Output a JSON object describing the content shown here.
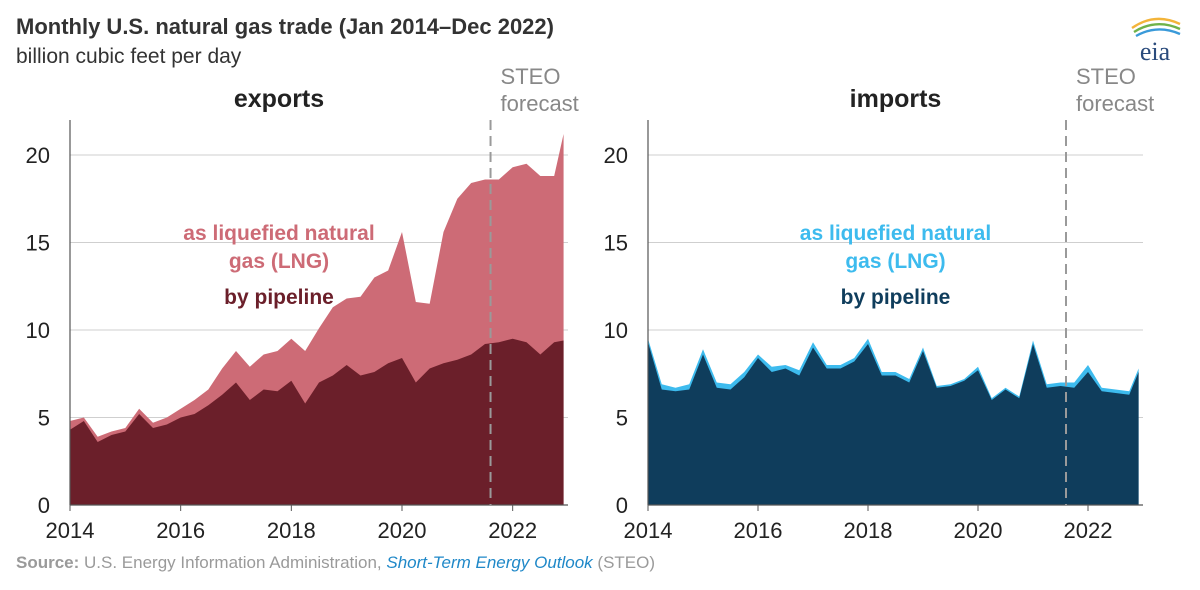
{
  "title": "Monthly U.S. natural gas trade (Jan 2014–Dec 2022)",
  "subtitle": "billion cubic feet per day",
  "source": {
    "label": "Source:",
    "text": " U.S. Energy Information Administration, ",
    "link": "Short-Term Energy Outlook",
    "suffix": " (STEO)"
  },
  "logo": {
    "text": "eia",
    "icon": "eia-logo"
  },
  "colors": {
    "exports_pipeline": "#6b1f2a",
    "exports_lng": "#cd6b76",
    "imports_pipeline": "#0f3d5c",
    "imports_lng": "#3dbbee",
    "grid": "#cfcfcf",
    "forecast_line": "#9a9a9a"
  },
  "chart_data": [
    {
      "type": "area",
      "stacked": true,
      "title": "exports",
      "xlim": [
        2014,
        2023
      ],
      "ylim": [
        0,
        22
      ],
      "x_ticks": [
        2014,
        2016,
        2018,
        2020,
        2022
      ],
      "y_ticks": [
        0,
        5,
        10,
        15,
        20
      ],
      "grid": true,
      "forecast_start": 2021.6,
      "forecast_label": [
        "STEO",
        "forecast"
      ],
      "series_labels": [
        {
          "lines": [
            "as liquefied natural",
            "gas (LNG)"
          ],
          "series": "LNG"
        },
        {
          "lines": [
            "by pipeline"
          ],
          "series": "pipeline"
        }
      ],
      "x": [
        2014.0,
        2014.25,
        2014.5,
        2014.75,
        2015.0,
        2015.25,
        2015.5,
        2015.75,
        2016.0,
        2016.25,
        2016.5,
        2016.75,
        2017.0,
        2017.25,
        2017.5,
        2017.75,
        2018.0,
        2018.25,
        2018.5,
        2018.75,
        2019.0,
        2019.25,
        2019.5,
        2019.75,
        2020.0,
        2020.25,
        2020.5,
        2020.75,
        2021.0,
        2021.25,
        2021.5,
        2021.75,
        2022.0,
        2022.25,
        2022.5,
        2022.75,
        2022.92
      ],
      "series": [
        {
          "name": "pipeline",
          "values": [
            4.3,
            4.8,
            3.6,
            4.0,
            4.2,
            5.2,
            4.4,
            4.6,
            5.0,
            5.2,
            5.7,
            6.3,
            7.0,
            6.0,
            6.6,
            6.5,
            7.1,
            5.8,
            7.0,
            7.4,
            8.0,
            7.4,
            7.6,
            8.1,
            8.4,
            7.0,
            7.8,
            8.1,
            8.3,
            8.6,
            9.2,
            9.3,
            9.5,
            9.3,
            8.6,
            9.3,
            9.4
          ]
        },
        {
          "name": "LNG",
          "values": [
            0.5,
            0.2,
            0.3,
            0.2,
            0.2,
            0.3,
            0.3,
            0.4,
            0.5,
            0.8,
            0.9,
            1.5,
            1.8,
            1.9,
            2.0,
            2.3,
            2.4,
            3.0,
            3.1,
            3.9,
            3.8,
            4.5,
            5.4,
            5.3,
            7.2,
            4.6,
            3.7,
            7.5,
            9.2,
            9.8,
            9.4,
            9.3,
            9.8,
            10.2,
            10.2,
            9.5,
            11.8
          ]
        }
      ]
    },
    {
      "type": "area",
      "stacked": true,
      "title": "imports",
      "xlim": [
        2014,
        2023
      ],
      "ylim": [
        0,
        22
      ],
      "x_ticks": [
        2014,
        2016,
        2018,
        2020,
        2022
      ],
      "y_ticks": [
        0,
        5,
        10,
        15,
        20
      ],
      "grid": true,
      "forecast_start": 2021.6,
      "forecast_label": [
        "STEO",
        "forecast"
      ],
      "series_labels": [
        {
          "lines": [
            "as liquefied natural",
            "gas (LNG)"
          ],
          "series": "LNG"
        },
        {
          "lines": [
            "by pipeline"
          ],
          "series": "pipeline"
        }
      ],
      "x": [
        2014.0,
        2014.25,
        2014.5,
        2014.75,
        2015.0,
        2015.25,
        2015.5,
        2015.75,
        2016.0,
        2016.25,
        2016.5,
        2016.75,
        2017.0,
        2017.25,
        2017.5,
        2017.75,
        2018.0,
        2018.25,
        2018.5,
        2018.75,
        2019.0,
        2019.25,
        2019.5,
        2019.75,
        2020.0,
        2020.25,
        2020.5,
        2020.75,
        2021.0,
        2021.25,
        2021.5,
        2021.75,
        2022.0,
        2022.25,
        2022.5,
        2022.75,
        2022.92
      ],
      "series": [
        {
          "name": "pipeline",
          "values": [
            9.3,
            6.6,
            6.5,
            6.6,
            8.6,
            6.7,
            6.6,
            7.3,
            8.4,
            7.6,
            7.8,
            7.4,
            9.0,
            7.8,
            7.8,
            8.2,
            9.2,
            7.4,
            7.4,
            7.0,
            8.8,
            6.7,
            6.8,
            7.1,
            7.7,
            6.0,
            6.6,
            6.1,
            9.2,
            6.7,
            6.8,
            6.7,
            7.6,
            6.5,
            6.4,
            6.3,
            7.6
          ]
        },
        {
          "name": "LNG",
          "values": [
            0.2,
            0.3,
            0.2,
            0.3,
            0.3,
            0.3,
            0.3,
            0.3,
            0.2,
            0.3,
            0.2,
            0.3,
            0.3,
            0.2,
            0.2,
            0.2,
            0.3,
            0.2,
            0.2,
            0.2,
            0.2,
            0.1,
            0.1,
            0.1,
            0.2,
            0.1,
            0.1,
            0.1,
            0.2,
            0.2,
            0.2,
            0.3,
            0.4,
            0.2,
            0.2,
            0.2,
            0.2
          ]
        }
      ]
    }
  ]
}
